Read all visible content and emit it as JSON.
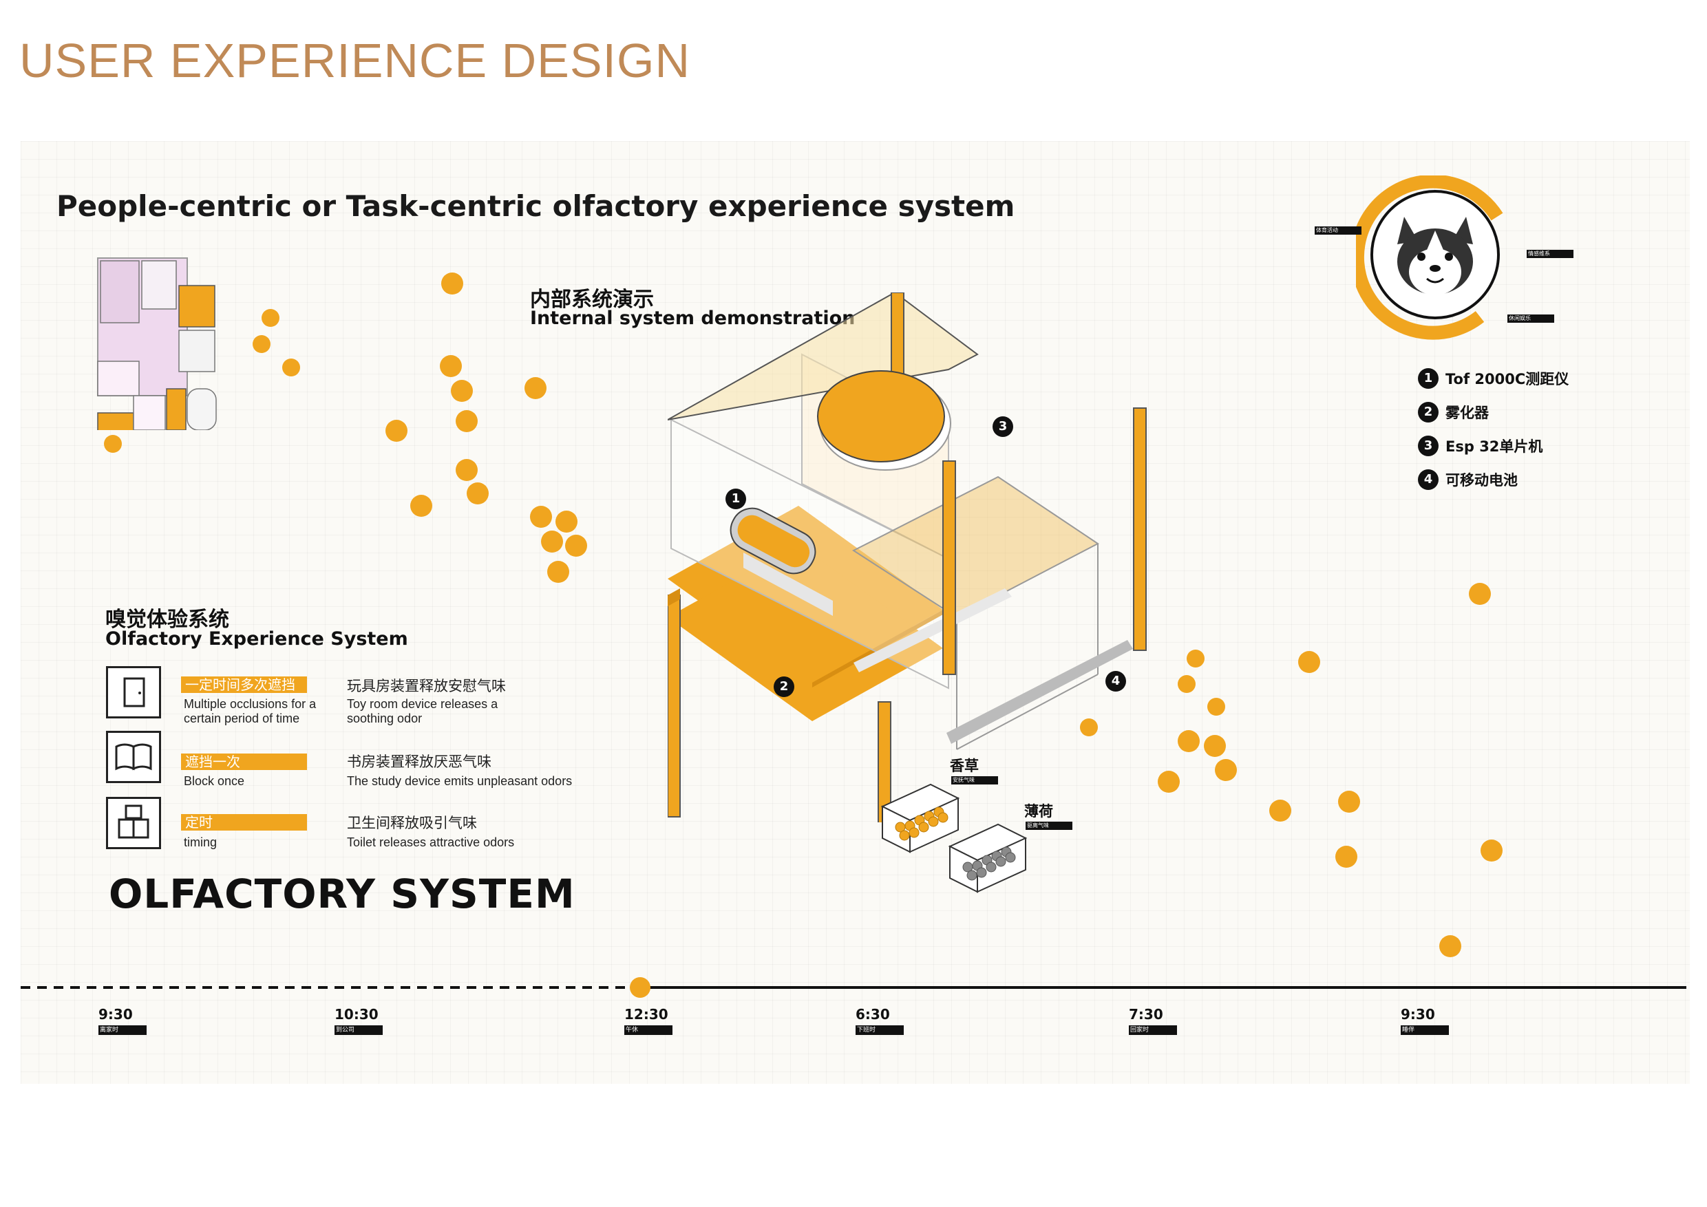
{
  "page_title": "USER EXPERIENCE DESIGN",
  "heading": "People-centric or Task-centric olfactory experience system",
  "internal": {
    "cn": "内部系统演示",
    "en": "Internal system demonstration"
  },
  "olfactory": {
    "cn": "嗅觉体验系统",
    "en": "Olfactory Experience System"
  },
  "legend": [
    {
      "icon": "door-icon",
      "tag": "一定时间多次遮挡",
      "en": "Multiple occlusions for a certain period of time",
      "desc_cn": "玩具房装置释放安慰气味",
      "desc_en": "Toy room device releases a soothing odor"
    },
    {
      "icon": "book-icon",
      "tag": "遮挡一次",
      "en": "Block once",
      "desc_cn": "书房装置释放厌恶气味",
      "desc_en": "The study device emits unpleasant odors"
    },
    {
      "icon": "toilet-icon",
      "tag": "定时",
      "en": "timing",
      "desc_cn": "卫生间释放吸引气味",
      "desc_en": "Toilet releases attractive odors"
    }
  ],
  "big_title": "OLFACTORY SYSTEM",
  "components": [
    {
      "num": "1",
      "label": "Tof 2000C测距仪"
    },
    {
      "num": "2",
      "label": "雾化器"
    },
    {
      "num": "3",
      "label": "Esp 32单片机"
    },
    {
      "num": "4",
      "label": "可移动电池"
    }
  ],
  "ring_labels": [
    "体育活动",
    "情感维系",
    "休闲娱乐"
  ],
  "callouts": [
    "1",
    "2",
    "3",
    "4"
  ],
  "boxes": [
    {
      "title": "香草",
      "tag": "安抚气味"
    },
    {
      "title": "薄荷",
      "tag": "驱离气味"
    }
  ],
  "timeline": [
    {
      "time": "9:30",
      "tag": "离家时"
    },
    {
      "time": "10:30",
      "tag": "到公司"
    },
    {
      "time": "12:30",
      "tag": "午休"
    },
    {
      "time": "6:30",
      "tag": "下班时"
    },
    {
      "time": "7:30",
      "tag": "回家时"
    },
    {
      "time": "9:30",
      "tag": "睡伴"
    }
  ],
  "colors": {
    "accent": "#f0a51f",
    "title": "#c08a57",
    "ink": "#111111"
  }
}
